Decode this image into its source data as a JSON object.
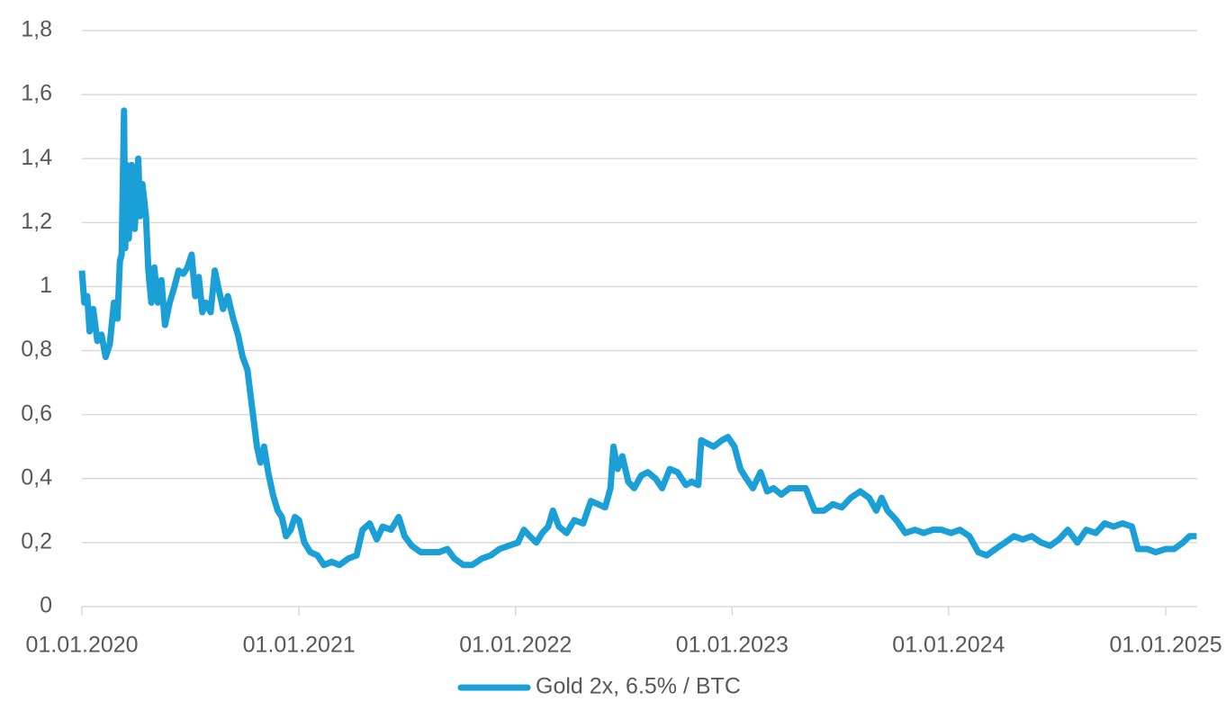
{
  "chart_data": {
    "type": "line",
    "x": [
      "2020-01-01",
      "2020-01-05",
      "2020-01-10",
      "2020-01-14",
      "2020-01-20",
      "2020-01-27",
      "2020-02-03",
      "2020-02-10",
      "2020-02-17",
      "2020-02-24",
      "2020-03-01",
      "2020-03-05",
      "2020-03-08",
      "2020-03-12",
      "2020-03-14",
      "2020-03-17",
      "2020-03-20",
      "2020-03-25",
      "2020-03-30",
      "2020-04-05",
      "2020-04-08",
      "2020-04-12",
      "2020-04-18",
      "2020-04-22",
      "2020-04-27",
      "2020-05-02",
      "2020-05-08",
      "2020-05-14",
      "2020-05-20",
      "2020-05-28",
      "2020-06-05",
      "2020-06-12",
      "2020-06-20",
      "2020-06-27",
      "2020-07-04",
      "2020-07-10",
      "2020-07-16",
      "2020-07-22",
      "2020-07-28",
      "2020-08-05",
      "2020-08-12",
      "2020-08-20",
      "2020-08-26",
      "2020-09-03",
      "2020-09-12",
      "2020-09-20",
      "2020-09-28",
      "2020-10-06",
      "2020-10-14",
      "2020-10-22",
      "2020-10-28",
      "2020-11-03",
      "2020-11-10",
      "2020-11-18",
      "2020-11-26",
      "2020-12-03",
      "2020-12-10",
      "2020-12-18",
      "2020-12-25",
      "2021-01-01",
      "2021-01-10",
      "2021-01-20",
      "2021-02-01",
      "2021-02-12",
      "2021-02-25",
      "2021-03-10",
      "2021-03-25",
      "2021-04-08",
      "2021-04-18",
      "2021-04-30",
      "2021-05-12",
      "2021-05-22",
      "2021-06-05",
      "2021-06-18",
      "2021-06-28",
      "2021-07-10",
      "2021-07-25",
      "2021-08-10",
      "2021-08-25",
      "2021-09-08",
      "2021-09-20",
      "2021-10-05",
      "2021-10-20",
      "2021-11-05",
      "2021-11-20",
      "2021-12-05",
      "2021-12-20",
      "2022-01-05",
      "2022-01-15",
      "2022-01-25",
      "2022-02-05",
      "2022-02-15",
      "2022-02-25",
      "2022-03-05",
      "2022-03-15",
      "2022-03-28",
      "2022-04-10",
      "2022-04-25",
      "2022-05-08",
      "2022-05-20",
      "2022-06-01",
      "2022-06-10",
      "2022-06-15",
      "2022-06-22",
      "2022-06-30",
      "2022-07-10",
      "2022-07-20",
      "2022-08-01",
      "2022-08-12",
      "2022-08-25",
      "2022-09-05",
      "2022-09-18",
      "2022-10-01",
      "2022-10-15",
      "2022-10-25",
      "2022-11-05",
      "2022-11-10",
      "2022-11-20",
      "2022-12-01",
      "2022-12-15",
      "2022-12-25",
      "2023-01-05",
      "2023-01-15",
      "2023-01-25",
      "2023-02-05",
      "2023-02-18",
      "2023-03-01",
      "2023-03-12",
      "2023-03-25",
      "2023-04-08",
      "2023-04-22",
      "2023-05-05",
      "2023-05-20",
      "2023-06-05",
      "2023-06-20",
      "2023-07-05",
      "2023-07-20",
      "2023-08-05",
      "2023-08-20",
      "2023-09-01",
      "2023-09-10",
      "2023-09-20",
      "2023-10-05",
      "2023-10-20",
      "2023-11-05",
      "2023-11-20",
      "2023-12-05",
      "2023-12-20",
      "2024-01-05",
      "2024-01-20",
      "2024-02-05",
      "2024-02-20",
      "2024-03-05",
      "2024-03-20",
      "2024-04-05",
      "2024-04-20",
      "2024-05-05",
      "2024-05-20",
      "2024-06-05",
      "2024-06-20",
      "2024-07-05",
      "2024-07-20",
      "2024-08-05",
      "2024-08-20",
      "2024-09-05",
      "2024-09-20",
      "2024-10-05",
      "2024-10-20",
      "2024-11-05",
      "2024-11-15",
      "2024-12-01",
      "2024-12-15",
      "2025-01-01",
      "2025-01-15",
      "2025-01-30",
      "2025-02-10",
      "2025-02-22"
    ],
    "series": [
      {
        "name": "Gold 2x, 6.5% / BTC",
        "color": "#1a9fd6",
        "values": [
          1.05,
          0.95,
          0.97,
          0.86,
          0.93,
          0.83,
          0.85,
          0.78,
          0.82,
          0.95,
          0.9,
          1.08,
          1.1,
          1.55,
          1.12,
          1.38,
          1.15,
          1.38,
          1.18,
          1.4,
          1.22,
          1.32,
          1.22,
          1.05,
          0.95,
          1.06,
          0.95,
          1.02,
          0.88,
          0.95,
          1.0,
          1.05,
          1.04,
          1.06,
          1.1,
          0.97,
          1.03,
          0.92,
          0.95,
          0.92,
          1.05,
          0.98,
          0.93,
          0.97,
          0.9,
          0.85,
          0.78,
          0.74,
          0.62,
          0.5,
          0.45,
          0.5,
          0.42,
          0.35,
          0.3,
          0.28,
          0.22,
          0.24,
          0.28,
          0.27,
          0.2,
          0.17,
          0.16,
          0.13,
          0.14,
          0.13,
          0.15,
          0.16,
          0.24,
          0.26,
          0.21,
          0.25,
          0.24,
          0.28,
          0.22,
          0.19,
          0.17,
          0.17,
          0.17,
          0.18,
          0.15,
          0.13,
          0.13,
          0.15,
          0.16,
          0.18,
          0.19,
          0.2,
          0.24,
          0.22,
          0.2,
          0.23,
          0.25,
          0.3,
          0.25,
          0.23,
          0.27,
          0.26,
          0.33,
          0.32,
          0.31,
          0.37,
          0.5,
          0.43,
          0.47,
          0.39,
          0.37,
          0.41,
          0.42,
          0.4,
          0.37,
          0.43,
          0.42,
          0.38,
          0.39,
          0.38,
          0.52,
          0.51,
          0.5,
          0.52,
          0.53,
          0.5,
          0.43,
          0.4,
          0.37,
          0.42,
          0.36,
          0.37,
          0.35,
          0.37,
          0.37,
          0.37,
          0.3,
          0.3,
          0.32,
          0.31,
          0.34,
          0.36,
          0.34,
          0.3,
          0.34,
          0.3,
          0.27,
          0.23,
          0.24,
          0.23,
          0.24,
          0.24,
          0.23,
          0.24,
          0.22,
          0.17,
          0.16,
          0.18,
          0.2,
          0.22,
          0.21,
          0.22,
          0.2,
          0.19,
          0.21,
          0.24,
          0.2,
          0.24,
          0.23,
          0.26,
          0.25,
          0.26,
          0.25,
          0.18,
          0.18,
          0.17,
          0.18,
          0.18,
          0.2,
          0.22,
          0.22
        ]
      }
    ],
    "xlim": [
      "2020-01-01",
      "2025-02-23"
    ],
    "xticks": [
      {
        "value": "2020-01-01",
        "label": "01.01.2020"
      },
      {
        "value": "2021-01-01",
        "label": "01.01.2021"
      },
      {
        "value": "2022-01-01",
        "label": "01.01.2022"
      },
      {
        "value": "2023-01-01",
        "label": "01.01.2023"
      },
      {
        "value": "2024-01-01",
        "label": "01.01.2024"
      },
      {
        "value": "2025-01-01",
        "label": "01.01.2025"
      }
    ],
    "ylim": [
      0,
      1.8
    ],
    "yticks": [
      0,
      {
        "value": 0.2,
        "label": "0,2"
      },
      {
        "value": 0.4,
        "label": "0,4"
      },
      {
        "value": 0.6,
        "label": "0,6"
      },
      {
        "value": 0.8,
        "label": "0,8"
      },
      1,
      {
        "value": 1.2,
        "label": "1,2"
      },
      {
        "value": 1.4,
        "label": "1,4"
      },
      {
        "value": 1.6,
        "label": "1,6"
      },
      {
        "value": 1.8,
        "label": "1,8"
      }
    ],
    "grid": true,
    "legend": "bottom"
  }
}
